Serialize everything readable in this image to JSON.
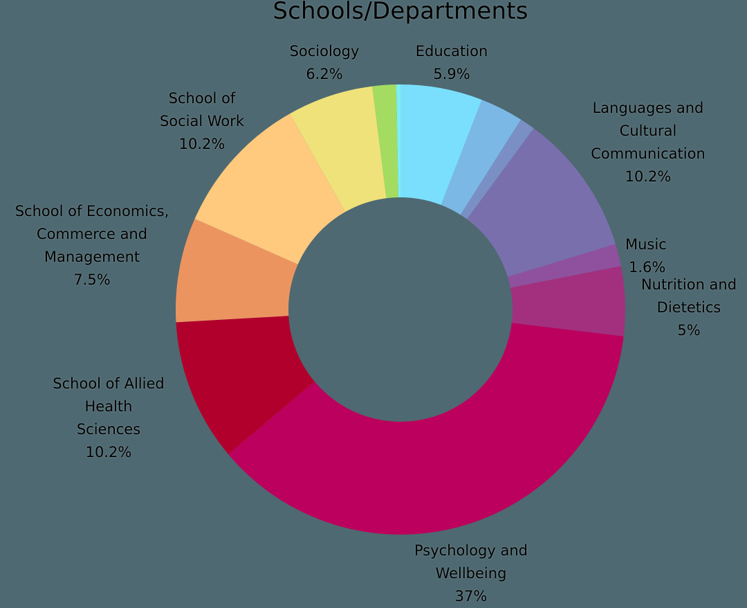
{
  "title": "Schools/Departments",
  "chart_data": {
    "type": "pie",
    "subtype": "donut",
    "title": "Schools/Departments",
    "start_angle_deg": 0,
    "direction": "clockwise",
    "center": [
      579,
      447
    ],
    "outer_radius": 325,
    "inner_radius": 162,
    "background": "#4E6971",
    "slices": [
      {
        "label": "Education",
        "value": 5.9,
        "display": "5.9%",
        "color": "#7ADFFD",
        "labeled": true
      },
      {
        "label": "",
        "value": 3.1,
        "display": "",
        "color": "#7CB8E6",
        "labeled": false
      },
      {
        "label": "",
        "value": 1.1,
        "display": "",
        "color": "#7A90C4",
        "labeled": false
      },
      {
        "label": "Languages and Cultural Communication",
        "value": 10.2,
        "display": "10.2%",
        "color": "#7A6FAD",
        "labeled": true
      },
      {
        "label": "Music",
        "value": 1.6,
        "display": "1.6%",
        "color": "#8F519E",
        "labeled": true
      },
      {
        "label": "Nutrition and Dietetics",
        "value": 5,
        "display": "5%",
        "color": "#A3307F",
        "labeled": true
      },
      {
        "label": "Psychology and Wellbeing",
        "value": 37,
        "display": "37%",
        "color": "#BC005D",
        "labeled": true
      },
      {
        "label": "School of Allied Health Sciences",
        "value": 10.2,
        "display": "10.2%",
        "color": "#B2002C",
        "labeled": true
      },
      {
        "label": "School of Economics, Commerce and Management",
        "value": 7.5,
        "display": "7.5%",
        "color": "#EC9460",
        "labeled": true
      },
      {
        "label": "School of Social Work",
        "value": 10.2,
        "display": "10.2%",
        "color": "#FFC97E",
        "labeled": true
      },
      {
        "label": "Sociology",
        "value": 6.2,
        "display": "6.2%",
        "color": "#EFE27A",
        "labeled": true
      },
      {
        "label": "",
        "value": 1.7,
        "display": "",
        "color": "#A4DC62",
        "labeled": false
      },
      {
        "label": "",
        "value": 0.3,
        "display": "",
        "color": "#7CEFF5",
        "labeled": false
      }
    ],
    "legend": "none",
    "grid": false
  },
  "labels": {
    "education": {
      "lines": [
        "Education"
      ],
      "pct": "5.9%"
    },
    "languages": {
      "lines": [
        "Languages and",
        "Cultural",
        "Communication"
      ],
      "pct": "10.2%"
    },
    "music": {
      "lines": [
        "Music"
      ],
      "pct": "1.6%"
    },
    "nutrition": {
      "lines": [
        "Nutrition and",
        "Dietetics"
      ],
      "pct": "5%"
    },
    "psychology": {
      "lines": [
        "Psychology and",
        "Wellbeing"
      ],
      "pct": "37%"
    },
    "allied_health": {
      "lines": [
        "School of Allied",
        "Health",
        "Sciences"
      ],
      "pct": "10.2%"
    },
    "economics": {
      "lines": [
        "School of Economics,",
        "Commerce and",
        "Management"
      ],
      "pct": "7.5%"
    },
    "social_work": {
      "lines": [
        "School of",
        "Social Work"
      ],
      "pct": "10.2%"
    },
    "sociology": {
      "lines": [
        "Sociology"
      ],
      "pct": "6.2%"
    }
  }
}
